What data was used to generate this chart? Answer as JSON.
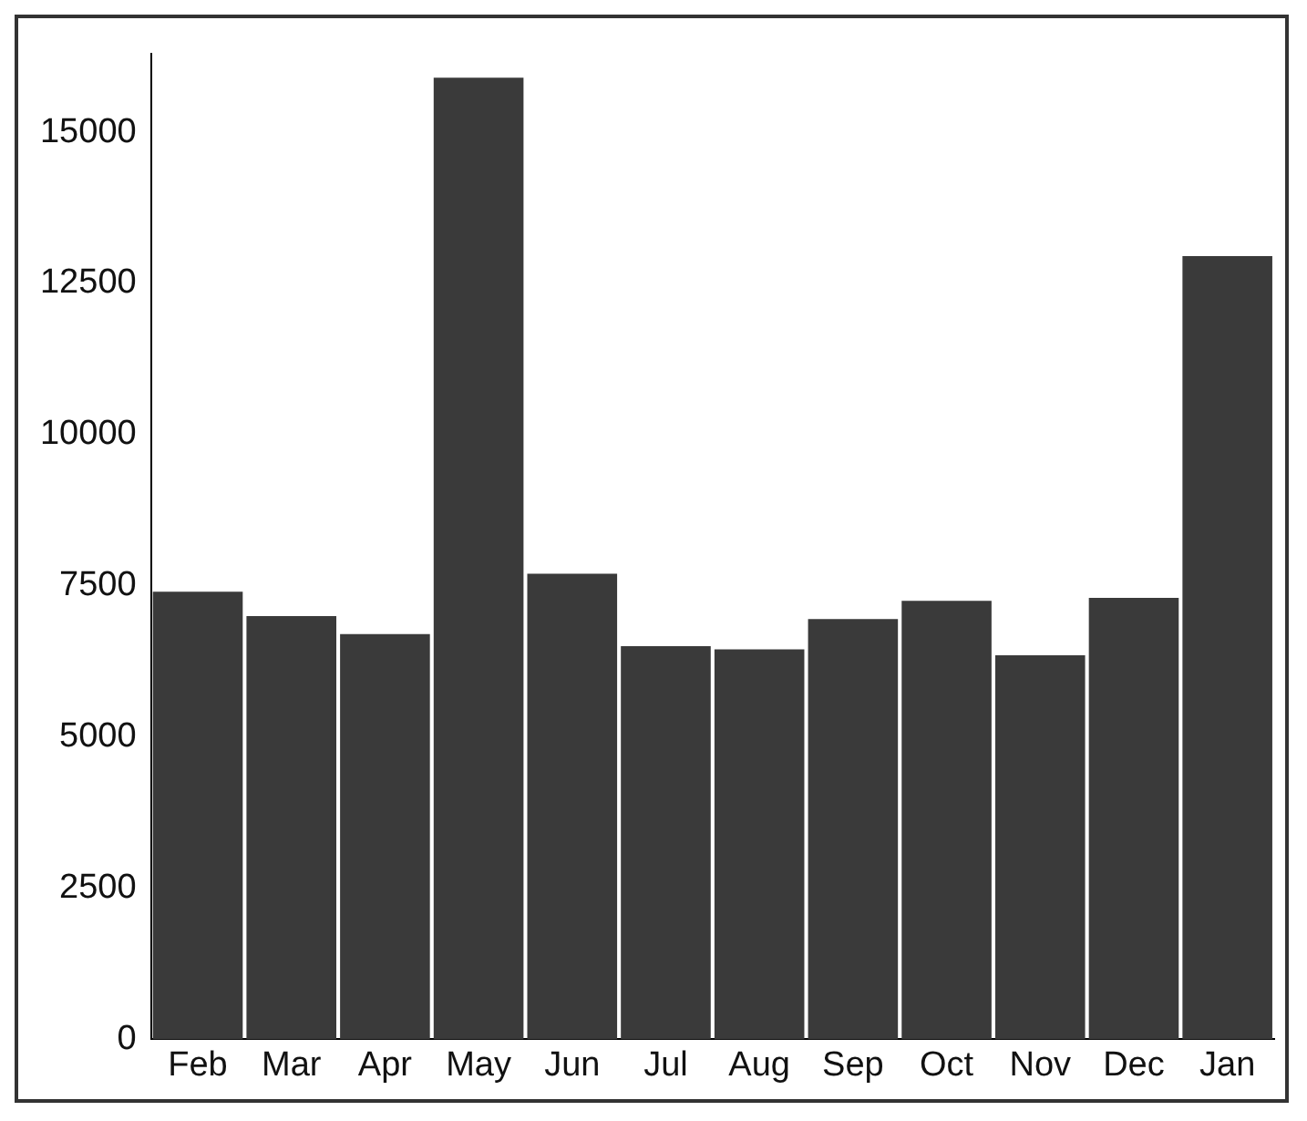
{
  "chart_data": {
    "type": "bar",
    "categories": [
      "Feb",
      "Mar",
      "Apr",
      "May",
      "Jun",
      "Jul",
      "Aug",
      "Sep",
      "Oct",
      "Nov",
      "Dec",
      "Jan"
    ],
    "values": [
      7400,
      7000,
      6700,
      15900,
      7700,
      6500,
      6450,
      6950,
      7250,
      6350,
      7300,
      12950
    ],
    "color": "#3a3a3a",
    "ylim": [
      0,
      16300
    ],
    "yticks": [
      0,
      2500,
      5000,
      7500,
      10000,
      12500,
      15000
    ],
    "grid": false,
    "legend": false
  }
}
